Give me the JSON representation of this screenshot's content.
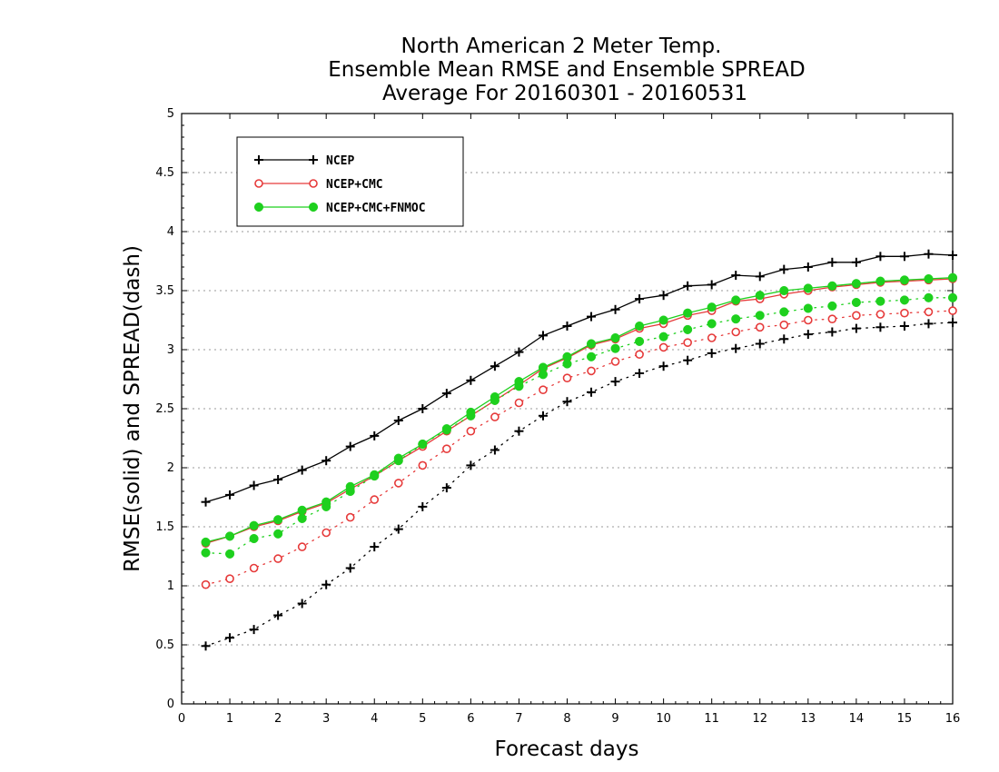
{
  "chart_data": {
    "type": "line",
    "title": [
      "North American 2 Meter Temp.",
      "Ensemble Mean RMSE and Ensemble SPREAD",
      "Average For 20160301 - 20160531"
    ],
    "xlabel": "Forecast days",
    "ylabel": "RMSE(solid) and SPREAD(dash)",
    "xlim": [
      0,
      16
    ],
    "ylim": [
      0,
      5
    ],
    "xticks": [
      "0",
      "1",
      "2",
      "3",
      "4",
      "5",
      "6",
      "7",
      "8",
      "9",
      "10",
      "11",
      "12",
      "13",
      "14",
      "15",
      "16"
    ],
    "yticks": [
      "0",
      "0.5",
      "1",
      "1.5",
      "2",
      "2.5",
      "3",
      "3.5",
      "4",
      "4.5",
      "5"
    ],
    "grid": "horizontal dotted",
    "legend_position": "top-left",
    "x": [
      0.5,
      1,
      1.5,
      2,
      2.5,
      3,
      3.5,
      4,
      4.5,
      5,
      5.5,
      6,
      6.5,
      7,
      7.5,
      8,
      8.5,
      9,
      9.5,
      10,
      10.5,
      11,
      11.5,
      12,
      12.5,
      13,
      13.5,
      14,
      14.5,
      15,
      15.5,
      16
    ],
    "series": [
      {
        "name": "NCEP",
        "color": "#000000",
        "marker": "plus",
        "rmse": [
          1.71,
          1.77,
          1.85,
          1.9,
          1.98,
          2.06,
          2.18,
          2.27,
          2.4,
          2.5,
          2.63,
          2.74,
          2.86,
          2.98,
          3.12,
          3.2,
          3.28,
          3.34,
          3.43,
          3.46,
          3.54,
          3.55,
          3.63,
          3.62,
          3.68,
          3.7,
          3.74,
          3.74,
          3.79,
          3.79,
          3.81,
          3.8
        ],
        "spread": [
          0.49,
          0.56,
          0.63,
          0.75,
          0.85,
          1.01,
          1.15,
          1.33,
          1.48,
          1.67,
          1.83,
          2.02,
          2.15,
          2.31,
          2.44,
          2.56,
          2.64,
          2.73,
          2.8,
          2.86,
          2.91,
          2.97,
          3.01,
          3.05,
          3.09,
          3.13,
          3.15,
          3.18,
          3.19,
          3.2,
          3.22,
          3.23
        ]
      },
      {
        "name": "NCEP+CMC",
        "color": "#e63a3a",
        "marker": "open-circle",
        "rmse": [
          1.36,
          1.42,
          1.5,
          1.55,
          1.63,
          1.7,
          1.82,
          1.93,
          2.06,
          2.18,
          2.31,
          2.44,
          2.57,
          2.7,
          2.84,
          2.93,
          3.04,
          3.09,
          3.18,
          3.22,
          3.29,
          3.33,
          3.41,
          3.43,
          3.47,
          3.5,
          3.53,
          3.55,
          3.57,
          3.58,
          3.59,
          3.6
        ],
        "spread": [
          1.01,
          1.06,
          1.15,
          1.23,
          1.33,
          1.45,
          1.58,
          1.73,
          1.87,
          2.02,
          2.16,
          2.31,
          2.43,
          2.55,
          2.66,
          2.76,
          2.82,
          2.9,
          2.96,
          3.02,
          3.06,
          3.1,
          3.15,
          3.19,
          3.21,
          3.25,
          3.26,
          3.29,
          3.3,
          3.31,
          3.32,
          3.33
        ]
      },
      {
        "name": "NCEP+CMC+FNMOC",
        "color": "#1ed01e",
        "marker": "filled-circle",
        "rmse": [
          1.37,
          1.42,
          1.51,
          1.56,
          1.64,
          1.71,
          1.84,
          1.94,
          2.08,
          2.2,
          2.33,
          2.47,
          2.6,
          2.73,
          2.85,
          2.94,
          3.05,
          3.1,
          3.2,
          3.25,
          3.31,
          3.36,
          3.42,
          3.46,
          3.5,
          3.52,
          3.54,
          3.56,
          3.58,
          3.59,
          3.6,
          3.61
        ],
        "spread": [
          1.28,
          1.27,
          1.4,
          1.44,
          1.57,
          1.67,
          1.8,
          1.93,
          2.06,
          2.2,
          2.32,
          2.44,
          2.57,
          2.69,
          2.79,
          2.88,
          2.94,
          3.01,
          3.07,
          3.11,
          3.17,
          3.22,
          3.26,
          3.29,
          3.32,
          3.35,
          3.37,
          3.4,
          3.41,
          3.42,
          3.44,
          3.44
        ]
      }
    ]
  }
}
